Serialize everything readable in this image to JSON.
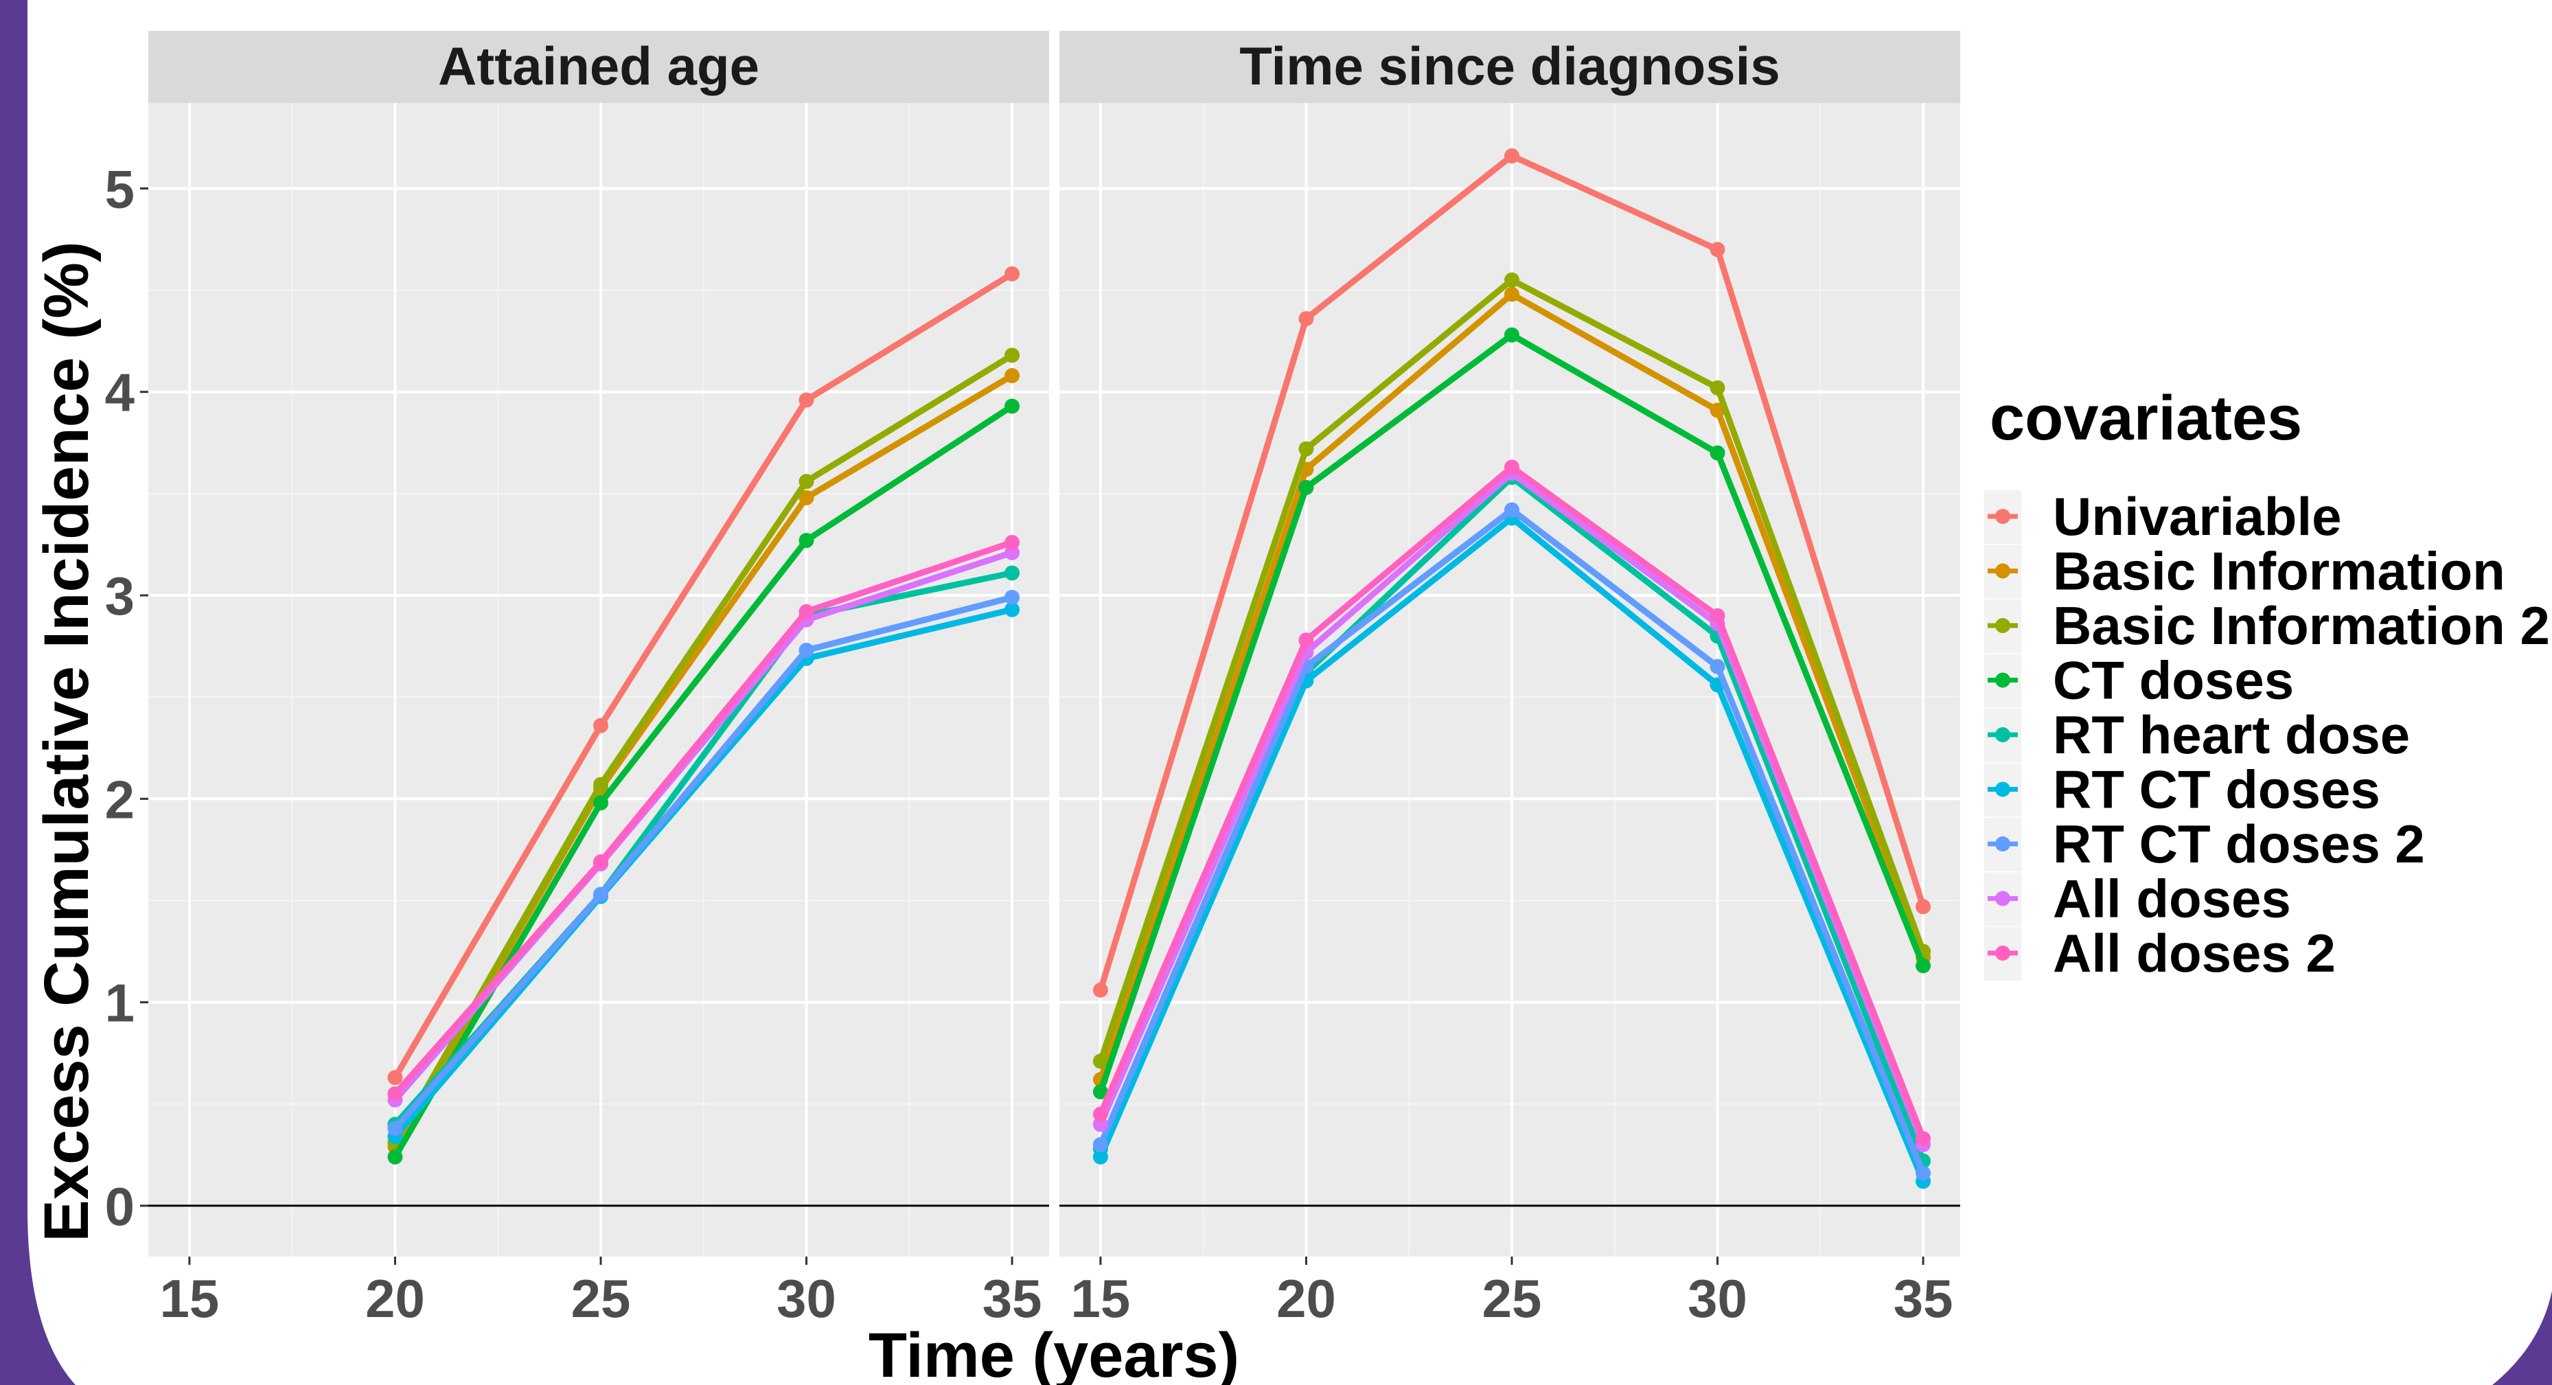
{
  "colors": {
    "frame": "#5b3a94",
    "panel_bg": "#ebebeb",
    "strip_bg": "#d9d9d9",
    "grid_major": "#ffffff",
    "text": "#4d4d4d",
    "title": "#000000"
  },
  "chart_data": {
    "type": "line",
    "ylabel": "Excess Cumulative Incidence (%)",
    "xlabel": "Time (years)",
    "x_ticks": [
      15,
      20,
      25,
      30,
      35
    ],
    "y_ticks": [
      0,
      1,
      2,
      3,
      4,
      5
    ],
    "xlim": [
      14,
      35.9
    ],
    "ylim": [
      -0.25,
      5.42
    ],
    "grid": true,
    "reference_line_y": 0,
    "legend": {
      "title": "covariates",
      "position": "right"
    },
    "series_names": [
      "Univariable",
      "Basic Information",
      "Basic Information 2",
      "CT doses",
      "RT heart dose",
      "RT CT doses",
      "RT CT doses 2",
      "All doses",
      "All doses 2"
    ],
    "series_colors": [
      "#f8766d",
      "#d39200",
      "#93aa00",
      "#00ba38",
      "#00c19f",
      "#00b9e3",
      "#619cff",
      "#db72fb",
      "#ff61c3"
    ],
    "panels": [
      {
        "title": "Attained age",
        "x": [
          20,
          25,
          30,
          35
        ],
        "series": [
          {
            "name": "Univariable",
            "values": [
              0.63,
              2.36,
              3.96,
              4.58
            ]
          },
          {
            "name": "Basic Information",
            "values": [
              0.29,
              2.05,
              3.48,
              4.08
            ]
          },
          {
            "name": "Basic Information 2",
            "values": [
              0.31,
              2.07,
              3.56,
              4.18
            ]
          },
          {
            "name": "CT doses",
            "values": [
              0.24,
              1.98,
              3.27,
              3.93
            ]
          },
          {
            "name": "RT heart dose",
            "values": [
              0.4,
              1.53,
              2.9,
              3.11
            ]
          },
          {
            "name": "RT CT doses",
            "values": [
              0.34,
              1.52,
              2.69,
              2.93
            ]
          },
          {
            "name": "RT CT doses 2",
            "values": [
              0.38,
              1.53,
              2.73,
              2.99
            ]
          },
          {
            "name": "All doses",
            "values": [
              0.52,
              1.68,
              2.88,
              3.21
            ]
          },
          {
            "name": "All doses 2",
            "values": [
              0.55,
              1.69,
              2.92,
              3.26
            ]
          }
        ]
      },
      {
        "title": "Time since diagnosis",
        "x": [
          15,
          20,
          25,
          30,
          35
        ],
        "series": [
          {
            "name": "Univariable",
            "values": [
              1.06,
              4.36,
              5.16,
              4.7,
              1.47
            ]
          },
          {
            "name": "Basic Information",
            "values": [
              0.62,
              3.62,
              4.48,
              3.91,
              1.22
            ]
          },
          {
            "name": "Basic Information 2",
            "values": [
              0.71,
              3.72,
              4.55,
              4.02,
              1.25
            ]
          },
          {
            "name": "CT doses",
            "values": [
              0.56,
              3.53,
              4.28,
              3.7,
              1.18
            ]
          },
          {
            "name": "RT heart dose",
            "values": [
              0.28,
              2.62,
              3.58,
              2.8,
              0.22
            ]
          },
          {
            "name": "RT CT doses",
            "values": [
              0.24,
              2.58,
              3.38,
              2.56,
              0.12
            ]
          },
          {
            "name": "RT CT doses 2",
            "values": [
              0.3,
              2.65,
              3.42,
              2.65,
              0.16
            ]
          },
          {
            "name": "All doses",
            "values": [
              0.4,
              2.72,
              3.6,
              2.86,
              0.3
            ]
          },
          {
            "name": "All doses 2",
            "values": [
              0.45,
              2.78,
              3.63,
              2.9,
              0.33
            ]
          }
        ]
      }
    ]
  }
}
